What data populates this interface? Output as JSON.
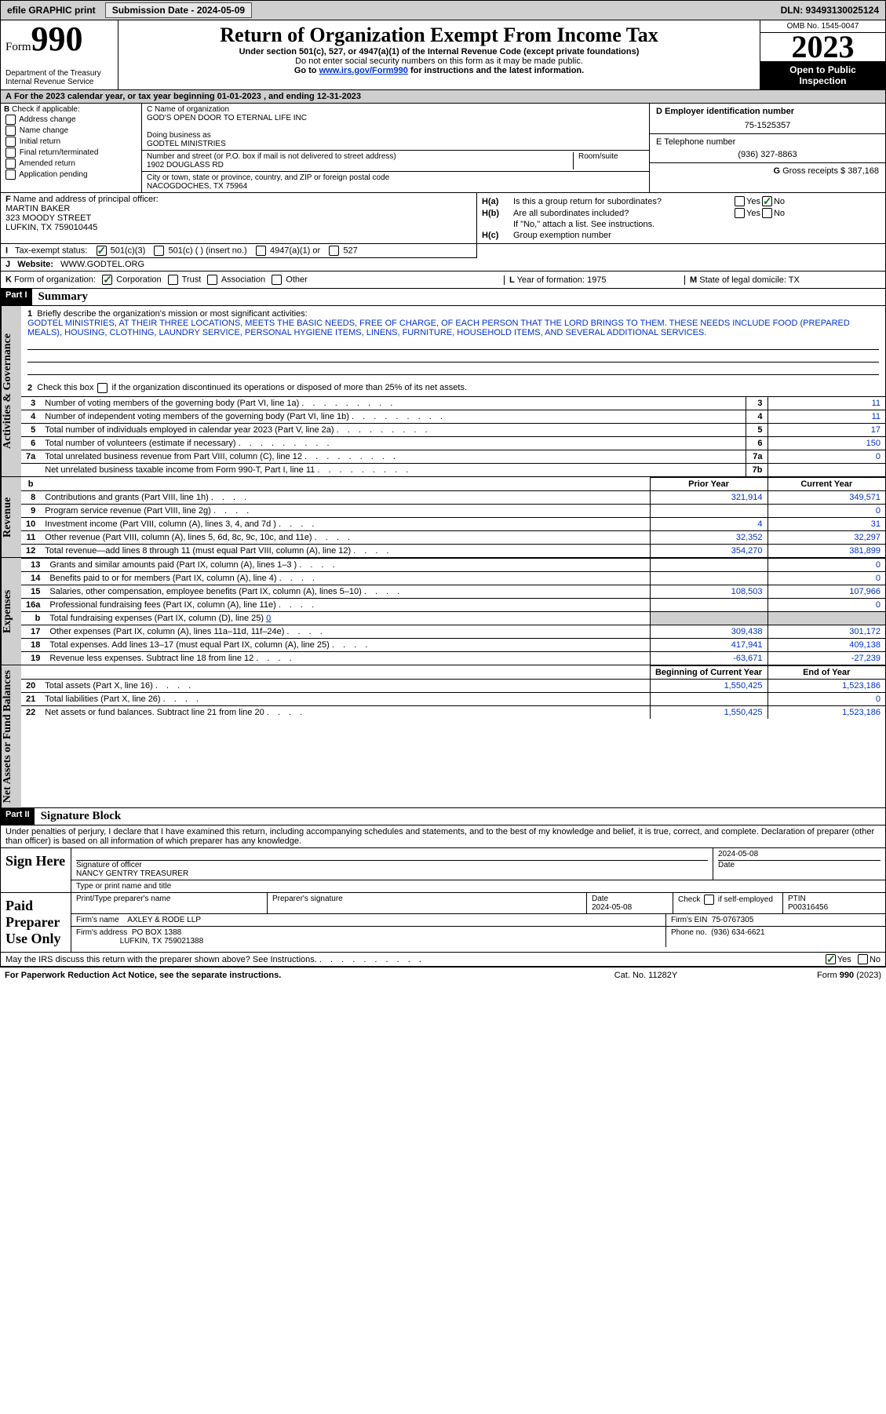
{
  "topbar": {
    "efile": "efile GRAPHIC print",
    "submission_label": "Submission Date - 2024-05-09",
    "dln_label": "DLN: 93493130025124"
  },
  "header": {
    "form_word": "Form",
    "form_num": "990",
    "title": "Return of Organization Exempt From Income Tax",
    "subtitle": "Under section 501(c), 527, or 4947(a)(1) of the Internal Revenue Code (except private foundations)",
    "ssn_warn": "Do not enter social security numbers on this form as it may be made public.",
    "goto_pre": "Go to ",
    "goto_link": "www.irs.gov/Form990",
    "goto_post": " for instructions and the latest information.",
    "dept": "Department of the Treasury",
    "irs": "Internal Revenue Service",
    "omb": "OMB No. 1545-0047",
    "year": "2023",
    "open1": "Open to Public",
    "open2": "Inspection"
  },
  "line_a": "For the 2023 calendar year, or tax year beginning 01-01-2023    , and ending 12-31-2023",
  "b": {
    "label": "B",
    "check_if": "Check if applicable:",
    "opts": [
      "Address change",
      "Name change",
      "Initial return",
      "Final return/terminated",
      "Amended return",
      "Application pending"
    ]
  },
  "c": {
    "name_lbl": "C Name of organization",
    "name": "GOD'S OPEN DOOR TO ETERNAL LIFE INC",
    "dba_lbl": "Doing business as",
    "dba": "GODTEL MINISTRIES",
    "street_lbl": "Number and street (or P.O. box if mail is not delivered to street address)",
    "room_lbl": "Room/suite",
    "street": "1902 DOUGLASS RD",
    "city_lbl": "City or town, state or province, country, and ZIP or foreign postal code",
    "city": "NACOGDOCHES, TX  75964"
  },
  "d": {
    "lbl": "D Employer identification number",
    "val": "75-1525357"
  },
  "e": {
    "lbl": "E Telephone number",
    "val": "(936) 327-8863"
  },
  "g": {
    "lbl": "G",
    "txt": "Gross receipts $",
    "val": "387,168"
  },
  "f": {
    "lbl": "F",
    "txt": "Name and address of principal officer:",
    "name": "MARTIN BAKER",
    "addr1": "323 MOODY STREET",
    "addr2": "LUFKIN, TX  759010445"
  },
  "h": {
    "a": "Is this a group return for subordinates?",
    "b": "Are all subordinates included?",
    "ifno": "If \"No,\" attach a list. See instructions.",
    "c": "Group exemption number",
    "yes": "Yes",
    "no": "No"
  },
  "i": {
    "lbl": "I",
    "txt": "Tax-exempt status:",
    "opts": [
      "501(c)(3)",
      "501(c) (   ) (insert no.)",
      "4947(a)(1) or",
      "527"
    ]
  },
  "j": {
    "lbl": "J",
    "txt": "Website:",
    "val": "WWW.GODTEL.ORG"
  },
  "k": {
    "lbl": "K",
    "txt": "Form of organization:",
    "opts": [
      "Corporation",
      "Trust",
      "Association",
      "Other"
    ]
  },
  "l": {
    "txt": "Year of formation: 1975"
  },
  "m": {
    "txt": "State of legal domicile: TX"
  },
  "parts": {
    "p1": "Part I",
    "p1_title": "Summary",
    "p2": "Part II",
    "p2_title": "Signature Block"
  },
  "side": {
    "gov": "Activities & Governance",
    "rev": "Revenue",
    "exp": "Expenses",
    "net": "Net Assets or Fund Balances"
  },
  "summary": {
    "q1_lbl": "1",
    "q1": "Briefly describe the organization's mission or most significant activities:",
    "q1_val": "GODTEL MINISTRIES, AT THEIR THREE LOCATIONS, MEETS THE BASIC NEEDS, FREE OF CHARGE, OF EACH PERSON THAT THE LORD BRINGS TO THEM. THESE NEEDS INCLUDE FOOD (PREPARED MEALS), HOUSING, CLOTHING, LAUNDRY SERVICE, PERSONAL HYGIENE ITEMS, LINENS, FURNITURE, HOUSEHOLD ITEMS, AND SEVERAL ADDITIONAL SERVICES.",
    "q2": "Check this box        if the organization discontinued its operations or disposed of more than 25% of its net assets.",
    "rows_single": [
      {
        "n": "3",
        "t": "Number of voting members of the governing body (Part VI, line 1a)",
        "box": "3",
        "v": "11"
      },
      {
        "n": "4",
        "t": "Number of independent voting members of the governing body (Part VI, line 1b)",
        "box": "4",
        "v": "11"
      },
      {
        "n": "5",
        "t": "Total number of individuals employed in calendar year 2023 (Part V, line 2a)",
        "box": "5",
        "v": "17"
      },
      {
        "n": "6",
        "t": "Total number of volunteers (estimate if necessary)",
        "box": "6",
        "v": "150"
      },
      {
        "n": "7a",
        "t": "Total unrelated business revenue from Part VIII, column (C), line 12",
        "box": "7a",
        "v": "0"
      },
      {
        "n": "",
        "t": "Net unrelated business taxable income from Form 990-T, Part I, line 11",
        "box": "7b",
        "v": ""
      }
    ],
    "hdr_b": "b",
    "col_prior": "Prior Year",
    "col_curr": "Current Year",
    "rev_rows": [
      {
        "n": "8",
        "t": "Contributions and grants (Part VIII, line 1h)",
        "p": "321,914",
        "c": "349,571"
      },
      {
        "n": "9",
        "t": "Program service revenue (Part VIII, line 2g)",
        "p": "",
        "c": "0"
      },
      {
        "n": "10",
        "t": "Investment income (Part VIII, column (A), lines 3, 4, and 7d )",
        "p": "4",
        "c": "31"
      },
      {
        "n": "11",
        "t": "Other revenue (Part VIII, column (A), lines 5, 6d, 8c, 9c, 10c, and 11e)",
        "p": "32,352",
        "c": "32,297"
      },
      {
        "n": "12",
        "t": "Total revenue—add lines 8 through 11 (must equal Part VIII, column (A), line 12)",
        "p": "354,270",
        "c": "381,899"
      }
    ],
    "exp_rows": [
      {
        "n": "13",
        "t": "Grants and similar amounts paid (Part IX, column (A), lines 1–3 )",
        "p": "",
        "c": "0"
      },
      {
        "n": "14",
        "t": "Benefits paid to or for members (Part IX, column (A), line 4)",
        "p": "",
        "c": "0"
      },
      {
        "n": "15",
        "t": "Salaries, other compensation, employee benefits (Part IX, column (A), lines 5–10)",
        "p": "108,503",
        "c": "107,966"
      },
      {
        "n": "16a",
        "t": "Professional fundraising fees (Part IX, column (A), line 11e)",
        "p": "",
        "c": "0"
      }
    ],
    "line_b": {
      "n": "b",
      "t": "Total fundraising expenses (Part IX, column (D), line 25)",
      "v": "0"
    },
    "exp_rows2": [
      {
        "n": "17",
        "t": "Other expenses (Part IX, column (A), lines 11a–11d, 11f–24e)",
        "p": "309,438",
        "c": "301,172"
      },
      {
        "n": "18",
        "t": "Total expenses. Add lines 13–17 (must equal Part IX, column (A), line 25)",
        "p": "417,941",
        "c": "409,138"
      },
      {
        "n": "19",
        "t": "Revenue less expenses. Subtract line 18 from line 12",
        "p": "-63,671",
        "c": "-27,239"
      }
    ],
    "col_begin": "Beginning of Current Year",
    "col_end": "End of Year",
    "net_rows": [
      {
        "n": "20",
        "t": "Total assets (Part X, line 16)",
        "p": "1,550,425",
        "c": "1,523,186"
      },
      {
        "n": "21",
        "t": "Total liabilities (Part X, line 26)",
        "p": "",
        "c": "0"
      },
      {
        "n": "22",
        "t": "Net assets or fund balances. Subtract line 21 from line 20",
        "p": "1,550,425",
        "c": "1,523,186"
      }
    ]
  },
  "perjury": "Under penalties of perjury, I declare that I have examined this return, including accompanying schedules and statements, and to the best of my knowledge and belief, it is true, correct, and complete. Declaration of preparer (other than officer) is based on all information of which preparer has any knowledge.",
  "sign": {
    "label": "Sign Here",
    "sig_of_officer": "Signature of officer",
    "officer_name": "NANCY GENTRY  TREASURER",
    "type_print": "Type or print name and title",
    "date_lbl": "Date",
    "date_val": "2024-05-08"
  },
  "paid": {
    "label": "Paid Preparer Use Only",
    "print_name_lbl": "Print/Type preparer's name",
    "prep_sig_lbl": "Preparer's signature",
    "date_lbl": "Date",
    "date_val": "2024-05-08",
    "check_lbl": "Check         if self-employed",
    "ptin_lbl": "PTIN",
    "ptin_val": "P00316456",
    "firm_name_lbl": "Firm's name",
    "firm_name": "AXLEY & RODE LLP",
    "firm_ein_lbl": "Firm's EIN",
    "firm_ein": "75-0767305",
    "firm_addr_lbl": "Firm's address",
    "firm_addr1": "PO BOX 1388",
    "firm_addr2": "LUFKIN, TX  759021388",
    "phone_lbl": "Phone no.",
    "phone": "(936) 634-6621"
  },
  "discuss": "May the IRS discuss this return with the preparer shown above? See Instructions.",
  "footer": {
    "left": "For Paperwork Reduction Act Notice, see the separate instructions.",
    "mid": "Cat. No. 11282Y",
    "right_pre": "Form ",
    "right_bold": "990",
    "right_post": " (2023)"
  },
  "colors": {
    "link": "#0033cc",
    "grey": "#cfcfcf",
    "check_green": "#1a6e1a"
  }
}
